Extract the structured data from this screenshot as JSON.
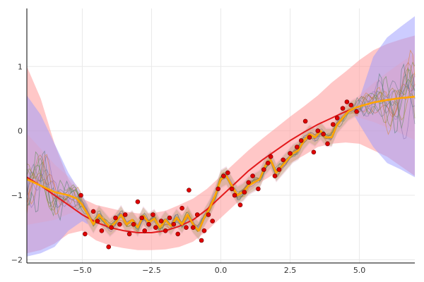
{
  "chart_data": {
    "type": "line",
    "title": "",
    "xlabel": "",
    "ylabel": "",
    "xlim": [
      -7,
      7
    ],
    "ylim": [
      -2.05,
      1.9
    ],
    "grid": true,
    "legend": "none",
    "x_ticks": [
      {
        "value": -5.0,
        "label": "−5.0"
      },
      {
        "value": -2.5,
        "label": "−2.5"
      },
      {
        "value": 0.0,
        "label": "0.0"
      },
      {
        "value": 2.5,
        "label": "2.5"
      },
      {
        "value": 5.0,
        "label": "5.0"
      }
    ],
    "y_ticks": [
      {
        "value": -2,
        "label": "−2"
      },
      {
        "value": -1,
        "label": "−1"
      },
      {
        "value": 0,
        "label": "0"
      },
      {
        "value": 1,
        "label": "1"
      }
    ],
    "colors": {
      "red_mean": "#e31a1c",
      "red_band": "#ff9999",
      "blue_band": "#9999ff",
      "pink_band": "#e0a0c0",
      "olive_band": "#b5b35a",
      "orange_mean": "#ffa500",
      "points": "#e00000",
      "sample_lines": [
        "#d9822b",
        "#7a8a3a",
        "#5a8f4a",
        "#8a6fb0",
        "#c46a4a",
        "#6a7a8a",
        "#a88a2a",
        "#4a7a6a"
      ]
    },
    "data_points": {
      "x": [
        -5.05,
        -4.9,
        -4.6,
        -4.45,
        -4.3,
        -4.05,
        -3.95,
        -3.8,
        -3.65,
        -3.45,
        -3.3,
        -3.15,
        -3.0,
        -2.85,
        -2.75,
        -2.6,
        -2.45,
        -2.35,
        -2.15,
        -2.0,
        -1.85,
        -1.7,
        -1.55,
        -1.4,
        -1.25,
        -1.15,
        -1.0,
        -0.85,
        -0.7,
        -0.6,
        -0.45,
        -0.3,
        -0.1,
        0.1,
        0.25,
        0.4,
        0.5,
        0.7,
        0.85,
        1.0,
        1.15,
        1.35,
        1.55,
        1.7,
        1.8,
        1.95,
        2.1,
        2.25,
        2.5,
        2.75,
        2.9,
        3.05,
        3.2,
        3.35,
        3.5,
        3.7,
        3.85,
        4.05,
        4.2,
        4.4,
        4.55,
        4.7,
        4.9
      ],
      "y": [
        -1.0,
        -1.6,
        -1.25,
        -1.4,
        -1.55,
        -1.8,
        -1.5,
        -1.35,
        -1.45,
        -1.3,
        -1.6,
        -1.45,
        -1.1,
        -1.35,
        -1.55,
        -1.45,
        -1.3,
        -1.5,
        -1.4,
        -1.55,
        -1.35,
        -1.45,
        -1.6,
        -1.2,
        -1.5,
        -0.92,
        -1.5,
        -1.3,
        -1.7,
        -1.55,
        -1.3,
        -1.4,
        -0.9,
        -0.7,
        -0.65,
        -0.9,
        -1.0,
        -1.15,
        -0.95,
        -0.8,
        -0.7,
        -0.9,
        -0.6,
        -0.5,
        -0.4,
        -0.7,
        -0.6,
        -0.45,
        -0.35,
        -0.25,
        -0.15,
        0.15,
        -0.1,
        -0.33,
        0.0,
        -0.05,
        -0.2,
        0.1,
        0.2,
        0.35,
        0.45,
        0.4,
        0.3
      ]
    },
    "series": [
      {
        "role": "red mean",
        "x": [
          -7,
          -6.5,
          -6,
          -5.5,
          -5,
          -4.5,
          -4,
          -3.5,
          -3,
          -2.5,
          -2,
          -1.5,
          -1,
          -0.5,
          0,
          0.5,
          1,
          1.5,
          2,
          2.5,
          3,
          3.5,
          4,
          4.5,
          5,
          5.5,
          6,
          6.5,
          7
        ],
        "y": [
          -0.72,
          -0.85,
          -1.0,
          -1.15,
          -1.3,
          -1.42,
          -1.5,
          -1.55,
          -1.58,
          -1.58,
          -1.55,
          -1.48,
          -1.38,
          -1.22,
          -1.02,
          -0.82,
          -0.62,
          -0.45,
          -0.3,
          -0.15,
          -0.02,
          0.1,
          0.2,
          0.3,
          0.38,
          0.44,
          0.48,
          0.51,
          0.53
        ]
      },
      {
        "role": "orange mean",
        "x": [
          -7,
          -6.5,
          -6,
          -5.5,
          -5.2,
          -5,
          -4.8,
          -4.6,
          -4.4,
          -4.2,
          -4.0,
          -3.8,
          -3.6,
          -3.4,
          -3.2,
          -3.0,
          -2.8,
          -2.6,
          -2.4,
          -2.2,
          -2.0,
          -1.8,
          -1.6,
          -1.4,
          -1.2,
          -1.0,
          -0.8,
          -0.6,
          -0.4,
          -0.2,
          0.0,
          0.2,
          0.4,
          0.6,
          0.8,
          1.0,
          1.2,
          1.4,
          1.6,
          1.8,
          2.0,
          2.2,
          2.4,
          2.6,
          2.8,
          3.0,
          3.2,
          3.4,
          3.6,
          3.8,
          4.0,
          4.2,
          4.4,
          4.6,
          4.8,
          5.0,
          5.5,
          6.0,
          6.5,
          7.0
        ],
        "y": [
          -0.75,
          -0.85,
          -0.95,
          -1.0,
          -1.05,
          -1.15,
          -1.3,
          -1.45,
          -1.3,
          -1.4,
          -1.5,
          -1.42,
          -1.3,
          -1.45,
          -1.38,
          -1.5,
          -1.32,
          -1.42,
          -1.36,
          -1.5,
          -1.38,
          -1.48,
          -1.35,
          -1.45,
          -1.3,
          -1.45,
          -1.55,
          -1.35,
          -1.2,
          -1.0,
          -0.75,
          -0.7,
          -0.85,
          -1.0,
          -0.95,
          -0.85,
          -0.8,
          -0.75,
          -0.55,
          -0.45,
          -0.65,
          -0.55,
          -0.45,
          -0.35,
          -0.3,
          -0.15,
          -0.05,
          -0.1,
          0.0,
          -0.1,
          -0.1,
          0.1,
          0.2,
          0.3,
          0.35,
          0.38,
          0.44,
          0.48,
          0.51,
          0.53
        ]
      }
    ],
    "bands": [
      {
        "role": "red band",
        "x": [
          -7,
          -6.5,
          -6,
          -5.5,
          -5,
          -4.5,
          -4,
          -3.5,
          -3,
          -2.5,
          -2,
          -1.5,
          -1,
          -0.5,
          0,
          0.5,
          1,
          1.5,
          2,
          2.5,
          3,
          3.5,
          4,
          4.5,
          5,
          5.5,
          6,
          6.5,
          7
        ],
        "upper": [
          1.0,
          0.5,
          -0.2,
          -0.75,
          -1.05,
          -1.15,
          -1.2,
          -1.25,
          -1.28,
          -1.28,
          -1.24,
          -1.15,
          -1.05,
          -0.9,
          -0.7,
          -0.5,
          -0.3,
          -0.12,
          0.05,
          0.22,
          0.38,
          0.55,
          0.75,
          0.92,
          1.1,
          1.25,
          1.35,
          1.42,
          1.48
        ],
        "lower": [
          -1.9,
          -1.85,
          -1.75,
          -1.6,
          -1.55,
          -1.7,
          -1.78,
          -1.82,
          -1.85,
          -1.85,
          -1.84,
          -1.8,
          -1.72,
          -1.55,
          -1.35,
          -1.15,
          -0.95,
          -0.78,
          -0.65,
          -0.5,
          -0.38,
          -0.25,
          -0.2,
          -0.18,
          -0.2,
          -0.3,
          -0.4,
          -0.55,
          -0.7
        ]
      },
      {
        "role": "blue band",
        "x": [
          -7,
          -6.5,
          -6,
          -5.5,
          -5,
          -4.8,
          4.8,
          5,
          5.5,
          6,
          6.5,
          7
        ],
        "upper": [
          0.55,
          0.25,
          -0.2,
          -0.65,
          -1.0,
          -1.15,
          0.35,
          0.5,
          1.15,
          1.45,
          1.62,
          1.78
        ],
        "lower": [
          -1.95,
          -1.9,
          -1.8,
          -1.55,
          -1.4,
          -1.45,
          0.25,
          0.1,
          -0.25,
          -0.5,
          -0.6,
          -0.72
        ]
      }
    ],
    "samples": {
      "count": 14,
      "x_start": -7,
      "x_end": 7
    }
  }
}
